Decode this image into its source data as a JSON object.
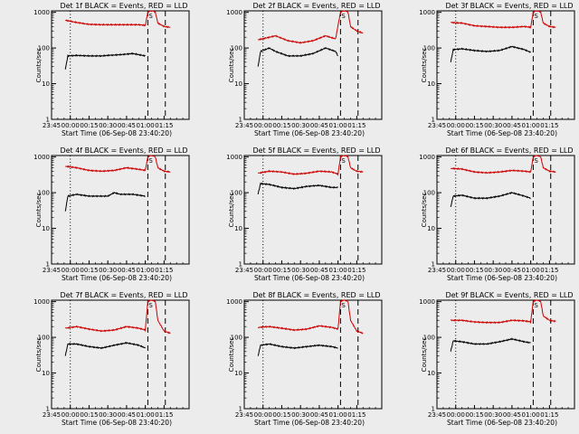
{
  "colors": {
    "background": "#ececec",
    "events": "#000000",
    "lld": "#cc0000",
    "axes": "#000000"
  },
  "chart_data": [
    {
      "type": "line",
      "title": "Det 1f BLACK = Events, RED = LLD",
      "ylabel": "Counts/sec",
      "xlabel": "Start Time (06-Sep-08 23:40:20)",
      "x_ticks": [
        "23:45",
        "00:00",
        "00:15",
        "00:30",
        "00:45",
        "01:00",
        "01:15"
      ],
      "y_ticks": [
        "1",
        "10",
        "100",
        "1000"
      ],
      "ylim": [
        1,
        1100
      ],
      "xlim_minutes": [
        -15,
        95
      ],
      "yscale": "log",
      "vlines_dotted": [
        0
      ],
      "vlines_dashed": [
        62,
        76
      ],
      "marker": "S",
      "series": [
        {
          "color": "#000000",
          "x": [
            -4,
            -2,
            5,
            15,
            25,
            30,
            40,
            50,
            60
          ],
          "y": [
            25,
            60,
            62,
            60,
            60,
            62,
            65,
            70,
            60
          ]
        },
        {
          "color": "#cc0000",
          "x": [
            -4,
            5,
            15,
            25,
            35,
            45,
            55,
            60,
            62,
            64,
            66,
            68,
            70,
            75,
            80
          ],
          "y": [
            600,
            520,
            460,
            450,
            450,
            450,
            450,
            430,
            1000,
            1100,
            1100,
            1000,
            500,
            400,
            380
          ]
        }
      ]
    },
    {
      "type": "line",
      "title": "Det 2f BLACK = Events, RED = LLD",
      "ylabel": "Counts/sec",
      "xlabel": "Start Time (06-Sep-08 23:40:20)",
      "x_ticks": [
        "23:45",
        "00:00",
        "00:15",
        "00:30",
        "00:45",
        "01:00",
        "01:15"
      ],
      "y_ticks": [
        "1",
        "10",
        "100",
        "1000"
      ],
      "ylim": [
        1,
        1100
      ],
      "xlim_minutes": [
        -15,
        95
      ],
      "yscale": "log",
      "vlines_dotted": [
        0
      ],
      "vlines_dashed": [
        62,
        76
      ],
      "marker": "S",
      "series": [
        {
          "color": "#000000",
          "x": [
            -4,
            -2,
            5,
            10,
            20,
            30,
            40,
            50,
            58,
            60
          ],
          "y": [
            30,
            80,
            100,
            80,
            60,
            60,
            70,
            100,
            80,
            60
          ]
        },
        {
          "color": "#cc0000",
          "x": [
            -4,
            5,
            10,
            20,
            30,
            40,
            50,
            58,
            62,
            64,
            66,
            68,
            70,
            75,
            80
          ],
          "y": [
            170,
            200,
            220,
            160,
            140,
            160,
            220,
            180,
            1000,
            1100,
            1100,
            1000,
            400,
            300,
            260
          ]
        }
      ]
    },
    {
      "type": "line",
      "title": "Det 3f BLACK = Events, RED = LLD",
      "ylabel": "Counts/sec",
      "xlabel": "Start Time (06-Sep-08 23:40:20)",
      "x_ticks": [
        "23:45",
        "00:00",
        "00:15",
        "00:30",
        "00:45",
        "01:00",
        "01:15"
      ],
      "y_ticks": [
        "1",
        "10",
        "100",
        "1000"
      ],
      "ylim": [
        1,
        1100
      ],
      "xlim_minutes": [
        -15,
        95
      ],
      "yscale": "log",
      "vlines_dotted": [
        0
      ],
      "vlines_dashed": [
        62,
        76
      ],
      "marker": "S",
      "series": [
        {
          "color": "#000000",
          "x": [
            -4,
            -2,
            5,
            15,
            25,
            35,
            45,
            55,
            60
          ],
          "y": [
            40,
            90,
            95,
            85,
            80,
            85,
            110,
            90,
            75
          ]
        },
        {
          "color": "#cc0000",
          "x": [
            -4,
            5,
            15,
            25,
            35,
            45,
            55,
            60,
            62,
            64,
            66,
            68,
            70,
            75,
            80
          ],
          "y": [
            520,
            500,
            420,
            400,
            380,
            380,
            400,
            380,
            1000,
            1100,
            1100,
            1000,
            500,
            400,
            380
          ]
        }
      ]
    },
    {
      "type": "line",
      "title": "Det 4f BLACK = Events, RED = LLD",
      "ylabel": "Counts/sec",
      "xlabel": "Start Time (06-Sep-08 23:40:20)",
      "x_ticks": [
        "23:45",
        "00:00",
        "00:15",
        "00:30",
        "00:45",
        "01:00",
        "01:15"
      ],
      "y_ticks": [
        "1",
        "10",
        "100",
        "1000"
      ],
      "ylim": [
        1,
        1100
      ],
      "xlim_minutes": [
        -15,
        95
      ],
      "yscale": "log",
      "vlines_dotted": [
        0
      ],
      "vlines_dashed": [
        62,
        76
      ],
      "marker": "S",
      "series": [
        {
          "color": "#000000",
          "x": [
            -4,
            -2,
            5,
            15,
            25,
            30,
            35,
            40,
            50,
            60
          ],
          "y": [
            30,
            80,
            90,
            80,
            80,
            80,
            100,
            90,
            90,
            80
          ]
        },
        {
          "color": "#cc0000",
          "x": [
            -4,
            5,
            15,
            25,
            35,
            45,
            55,
            60,
            62,
            64,
            66,
            68,
            70,
            75,
            80
          ],
          "y": [
            550,
            500,
            420,
            400,
            420,
            500,
            450,
            420,
            1000,
            1100,
            1100,
            1000,
            500,
            400,
            380
          ]
        }
      ]
    },
    {
      "type": "line",
      "title": "Det 5f BLACK = Events, RED = LLD",
      "ylabel": "Counts/sec",
      "xlabel": "Start Time (06-Sep-08 23:40:20)",
      "x_ticks": [
        "23:45",
        "00:00",
        "00:15",
        "00:30",
        "00:45",
        "01:00",
        "01:15"
      ],
      "y_ticks": [
        "1",
        "10",
        "100",
        "1000"
      ],
      "ylim": [
        1,
        1100
      ],
      "xlim_minutes": [
        -15,
        95
      ],
      "yscale": "log",
      "vlines_dotted": [
        0
      ],
      "vlines_dashed": [
        62,
        76
      ],
      "marker": "S",
      "series": [
        {
          "color": "#000000",
          "x": [
            -4,
            -2,
            5,
            15,
            25,
            35,
            45,
            55,
            60
          ],
          "y": [
            90,
            180,
            170,
            140,
            130,
            150,
            160,
            140,
            140
          ]
        },
        {
          "color": "#cc0000",
          "x": [
            -4,
            5,
            15,
            25,
            35,
            45,
            55,
            60,
            62,
            64,
            66,
            68,
            70,
            75,
            80
          ],
          "y": [
            350,
            400,
            380,
            330,
            350,
            400,
            380,
            330,
            1000,
            1100,
            1100,
            1000,
            500,
            400,
            380
          ]
        }
      ]
    },
    {
      "type": "line",
      "title": "Det 6f BLACK = Events, RED = LLD",
      "ylabel": "Counts/sec",
      "xlabel": "Start Time (06-Sep-08 23:40:20)",
      "x_ticks": [
        "23:45",
        "00:00",
        "00:15",
        "00:30",
        "00:45",
        "01:00",
        "01:15"
      ],
      "y_ticks": [
        "1",
        "10",
        "100",
        "1000"
      ],
      "ylim": [
        1,
        1100
      ],
      "xlim_minutes": [
        -15,
        95
      ],
      "yscale": "log",
      "vlines_dotted": [
        0
      ],
      "vlines_dashed": [
        62,
        76
      ],
      "marker": "S",
      "series": [
        {
          "color": "#000000",
          "x": [
            -4,
            -2,
            5,
            15,
            25,
            35,
            45,
            55,
            60
          ],
          "y": [
            40,
            80,
            85,
            70,
            70,
            80,
            100,
            80,
            70
          ]
        },
        {
          "color": "#cc0000",
          "x": [
            -4,
            5,
            15,
            25,
            35,
            45,
            55,
            60,
            62,
            64,
            66,
            68,
            70,
            75,
            80
          ],
          "y": [
            480,
            460,
            380,
            360,
            380,
            420,
            400,
            380,
            1000,
            1100,
            1100,
            1000,
            500,
            400,
            380
          ]
        }
      ]
    },
    {
      "type": "line",
      "title": "Det 7f BLACK = Events, RED = LLD",
      "ylabel": "Counts/sec",
      "xlabel": "Start Time (06-Sep-08 23:40:20)",
      "x_ticks": [
        "23:45",
        "00:00",
        "00:15",
        "00:30",
        "00:45",
        "01:00",
        "01:15"
      ],
      "y_ticks": [
        "1",
        "10",
        "100",
        "1000"
      ],
      "ylim": [
        1,
        1100
      ],
      "xlim_minutes": [
        -15,
        95
      ],
      "yscale": "log",
      "vlines_dotted": [
        0
      ],
      "vlines_dashed": [
        62,
        76
      ],
      "marker": "S",
      "series": [
        {
          "color": "#000000",
          "x": [
            -4,
            -2,
            5,
            15,
            25,
            35,
            45,
            55,
            60
          ],
          "y": [
            30,
            65,
            65,
            55,
            50,
            60,
            70,
            60,
            50
          ]
        },
        {
          "color": "#cc0000",
          "x": [
            -4,
            5,
            15,
            25,
            35,
            45,
            55,
            60,
            62,
            64,
            66,
            68,
            70,
            75,
            80
          ],
          "y": [
            180,
            200,
            170,
            150,
            160,
            200,
            180,
            160,
            1000,
            1100,
            1100,
            1000,
            300,
            150,
            130
          ]
        }
      ]
    },
    {
      "type": "line",
      "title": "Det 8f BLACK = Events, RED = LLD",
      "ylabel": "Counts/sec",
      "xlabel": "Start Time (06-Sep-08 23:40:20)",
      "x_ticks": [
        "23:45",
        "00:00",
        "00:15",
        "00:30",
        "00:45",
        "01:00",
        "01:15"
      ],
      "y_ticks": [
        "1",
        "10",
        "100",
        "1000"
      ],
      "ylim": [
        1,
        1100
      ],
      "xlim_minutes": [
        -15,
        95
      ],
      "yscale": "log",
      "vlines_dotted": [
        0
      ],
      "vlines_dashed": [
        62,
        76
      ],
      "marker": "S",
      "series": [
        {
          "color": "#000000",
          "x": [
            -4,
            -2,
            5,
            15,
            25,
            35,
            45,
            55,
            60
          ],
          "y": [
            30,
            60,
            65,
            55,
            50,
            55,
            60,
            55,
            50
          ]
        },
        {
          "color": "#cc0000",
          "x": [
            -4,
            5,
            15,
            25,
            35,
            45,
            55,
            60,
            62,
            64,
            66,
            68,
            70,
            75,
            80
          ],
          "y": [
            190,
            200,
            180,
            160,
            170,
            210,
            190,
            170,
            1000,
            1100,
            1100,
            1000,
            300,
            150,
            130
          ]
        }
      ]
    },
    {
      "type": "line",
      "title": "Det 9f BLACK = Events, RED = LLD",
      "ylabel": "Counts/sec",
      "xlabel": "Start Time (06-Sep-08 23:40:20)",
      "x_ticks": [
        "23:45",
        "00:00",
        "00:15",
        "00:30",
        "00:45",
        "01:00",
        "01:15"
      ],
      "y_ticks": [
        "1",
        "10",
        "100",
        "1000"
      ],
      "ylim": [
        1,
        1100
      ],
      "xlim_minutes": [
        -15,
        95
      ],
      "yscale": "log",
      "vlines_dotted": [
        0
      ],
      "vlines_dashed": [
        62,
        76
      ],
      "marker": "S",
      "series": [
        {
          "color": "#000000",
          "x": [
            -4,
            -2,
            5,
            15,
            25,
            35,
            45,
            55,
            60
          ],
          "y": [
            40,
            80,
            75,
            65,
            65,
            75,
            90,
            75,
            70
          ]
        },
        {
          "color": "#cc0000",
          "x": [
            -4,
            5,
            15,
            25,
            35,
            45,
            55,
            60,
            62,
            64,
            66,
            68,
            70,
            75,
            80
          ],
          "y": [
            300,
            300,
            270,
            260,
            260,
            300,
            290,
            270,
            1000,
            1100,
            1100,
            1000,
            400,
            300,
            280
          ]
        }
      ]
    }
  ]
}
